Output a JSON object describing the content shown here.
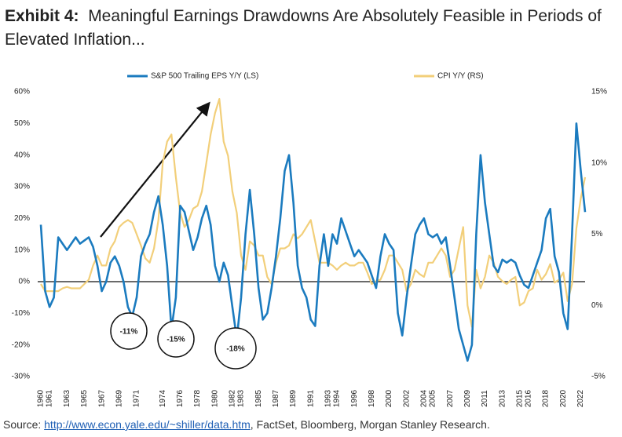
{
  "title_label": "Exhibit 4:",
  "title": "Meaningful Earnings Drawdowns Are Absolutely Feasible in Periods of Elevated Inflation...",
  "source_label": "Source:",
  "source_url": "http://www.econ.yale.edu/~shiller/data.htm",
  "source_rest": ", FactSet, Bloomberg, Morgan Stanley Research.",
  "chart_data": {
    "type": "line",
    "legend": "top",
    "x": [
      1960,
      1960.5,
      1961,
      1961.5,
      1962,
      1962.5,
      1963,
      1963.5,
      1964,
      1964.5,
      1965,
      1965.5,
      1966,
      1966.5,
      1967,
      1967.5,
      1968,
      1968.5,
      1969,
      1969.5,
      1970,
      1970.5,
      1971,
      1971.5,
      1972,
      1972.5,
      1973,
      1973.5,
      1974,
      1974.5,
      1975,
      1975.5,
      1976,
      1976.5,
      1977,
      1977.5,
      1978,
      1978.5,
      1979,
      1979.5,
      1980,
      1980.5,
      1981,
      1981.5,
      1982,
      1982.5,
      1983,
      1983.5,
      1984,
      1984.5,
      1985,
      1985.5,
      1986,
      1986.5,
      1987,
      1987.5,
      1988,
      1988.5,
      1989,
      1989.5,
      1990,
      1990.5,
      1991,
      1991.5,
      1992,
      1992.5,
      1993,
      1993.5,
      1994,
      1994.5,
      1995,
      1995.5,
      1996,
      1996.5,
      1997,
      1997.5,
      1998,
      1998.5,
      1999,
      1999.5,
      2000,
      2000.5,
      2001,
      2001.5,
      2002,
      2002.5,
      2003,
      2003.5,
      2004,
      2004.5,
      2005,
      2005.5,
      2006,
      2006.5,
      2007,
      2007.5,
      2008,
      2008.5,
      2009,
      2009.5,
      2010,
      2010.5,
      2011,
      2011.5,
      2012,
      2012.5,
      2013,
      2013.5,
      2014,
      2014.5,
      2015,
      2015.5,
      2016,
      2016.5,
      2017,
      2017.5,
      2018,
      2018.5,
      2019,
      2019.5,
      2020,
      2020.5,
      2021,
      2021.5,
      2022,
      2022.5
    ],
    "series": [
      {
        "name": "S&P 500 Trailing EPS Y/Y (LS)",
        "color": "#1b7bbf",
        "values": [
          18,
          -3,
          -8,
          -5,
          14,
          12,
          10,
          12,
          14,
          12,
          13,
          14,
          11,
          5,
          -3,
          0,
          6,
          8,
          5,
          0,
          -8,
          -11,
          -5,
          8,
          12,
          15,
          22,
          27,
          18,
          5,
          -15,
          -5,
          24,
          22,
          16,
          10,
          14,
          20,
          24,
          18,
          5,
          0,
          6,
          2,
          -8,
          -18,
          -5,
          15,
          29,
          15,
          -2,
          -12,
          -10,
          -2,
          8,
          20,
          35,
          40,
          25,
          5,
          -2,
          -5,
          -12,
          -14,
          5,
          15,
          5,
          15,
          12,
          20,
          16,
          12,
          8,
          10,
          8,
          6,
          2,
          -2,
          8,
          15,
          12,
          10,
          -10,
          -17,
          -5,
          5,
          15,
          18,
          20,
          15,
          14,
          15,
          12,
          14,
          5,
          -5,
          -15,
          -20,
          -25,
          -20,
          15,
          40,
          25,
          15,
          5,
          3,
          7,
          6,
          7,
          6,
          2,
          -1,
          -2,
          2,
          6,
          10,
          20,
          23,
          8,
          3,
          -10,
          -15,
          15,
          50,
          35,
          22
        ]
      },
      {
        "name": "CPI Y/Y (RS)",
        "color": "#f2cf7a",
        "axis": "y2",
        "values": [
          1.5,
          1,
          1,
          1,
          1,
          1.2,
          1.3,
          1.2,
          1.2,
          1.2,
          1.5,
          1.8,
          2.8,
          3.5,
          2.8,
          2.8,
          4,
          4.5,
          5.5,
          5.8,
          6,
          5.8,
          5,
          4.2,
          3.3,
          3,
          4,
          6,
          10,
          11.5,
          12,
          9,
          6.5,
          5.5,
          6,
          6.8,
          7,
          8,
          10,
          12,
          13.5,
          14.5,
          11.5,
          10.5,
          8,
          6.5,
          3.5,
          2.5,
          4.5,
          4.2,
          3.5,
          3.5,
          2,
          1.5,
          3,
          4,
          4,
          4.2,
          5,
          4.7,
          5,
          5.5,
          6,
          4.5,
          3,
          3,
          3,
          2.8,
          2.5,
          2.8,
          3,
          2.8,
          2.8,
          3,
          3,
          2.3,
          1.5,
          1.7,
          1.8,
          2.5,
          3.5,
          3.5,
          3,
          2.5,
          1,
          1.5,
          2.5,
          2.2,
          2,
          3,
          3,
          3.5,
          4,
          3.5,
          2,
          2.5,
          4,
          5.5,
          0,
          -1.5,
          2.5,
          1.2,
          2,
          3.5,
          3,
          2,
          1.7,
          1.5,
          1.8,
          2,
          0,
          0.2,
          1,
          1.2,
          2.5,
          1.8,
          2.2,
          2.9,
          1.6,
          1.8,
          2.3,
          0.3,
          1.5,
          5.4,
          7.5,
          9
        ]
      }
    ],
    "xlim": [
      1960,
      2022.5
    ],
    "xticks": [
      1960,
      1961,
      1963,
      1965,
      1967,
      1969,
      1971,
      1974,
      1976,
      1978,
      1980,
      1982,
      1983,
      1985,
      1987,
      1989,
      1991,
      1993,
      1994,
      1996,
      1998,
      2000,
      2002,
      2004,
      2005,
      2007,
      2009,
      2011,
      2013,
      2015,
      2016,
      2018,
      2020,
      2022
    ],
    "ylim": [
      -30,
      60
    ],
    "yticks": [
      {
        "value": -30,
        "label": "-30%"
      },
      {
        "value": -20,
        "label": "-20%"
      },
      {
        "value": -10,
        "label": "-10%"
      },
      {
        "value": 0,
        "label": "0%"
      },
      {
        "value": 10,
        "label": "10%"
      },
      {
        "value": 20,
        "label": "20%"
      },
      {
        "value": 30,
        "label": "30%"
      },
      {
        "value": 40,
        "label": "40%"
      },
      {
        "value": 50,
        "label": "50%"
      },
      {
        "value": 60,
        "label": "60%"
      }
    ],
    "y2lim": [
      -5,
      15
    ],
    "y2ticks": [
      {
        "value": -5,
        "label": "-5%"
      },
      {
        "value": 0,
        "label": "0%"
      },
      {
        "value": 5,
        "label": "5%"
      },
      {
        "value": 10,
        "label": "10%"
      },
      {
        "value": 15,
        "label": "15%"
      }
    ],
    "grid": false,
    "annotations": [
      "-11%",
      "-15%",
      "-18%"
    ]
  }
}
